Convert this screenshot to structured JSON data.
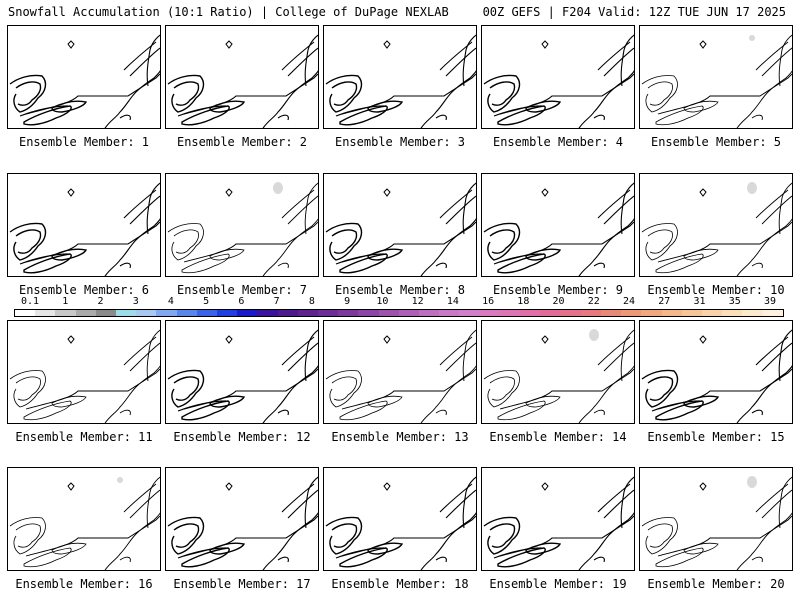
{
  "header": {
    "left": "Snowfall Accumulation (10:1 Ratio) | College of DuPage NEXLAB",
    "right": "00Z GEFS | F204 Valid: 12Z TUE JUN 17 2025"
  },
  "colors": {
    "map_lines": "#000000",
    "snow_fill": "#d9d9d9"
  },
  "panels": [
    {
      "label": "Ensemble Member: 1",
      "coastline": "dark",
      "snow_spots": []
    },
    {
      "label": "Ensemble Member: 2",
      "coastline": "dark",
      "snow_spots": []
    },
    {
      "label": "Ensemble Member: 3",
      "coastline": "dark",
      "snow_spots": []
    },
    {
      "label": "Ensemble Member: 4",
      "coastline": "dark",
      "snow_spots": []
    },
    {
      "label": "Ensemble Member: 5",
      "coastline": "light",
      "snow_spots": [
        "northern Maine"
      ]
    },
    {
      "label": "Ensemble Member: 6",
      "coastline": "dark",
      "snow_spots": []
    },
    {
      "label": "Ensemble Member: 7",
      "coastline": "light",
      "snow_spots": [
        "Quebec"
      ]
    },
    {
      "label": "Ensemble Member: 8",
      "coastline": "dark",
      "snow_spots": []
    },
    {
      "label": "Ensemble Member: 9",
      "coastline": "dark",
      "snow_spots": []
    },
    {
      "label": "Ensemble Member: 10",
      "coastline": "light",
      "snow_spots": [
        "Quebec"
      ]
    },
    {
      "label": "Ensemble Member: 11",
      "coastline": "light",
      "snow_spots": []
    },
    {
      "label": "Ensemble Member: 12",
      "coastline": "dark",
      "snow_spots": []
    },
    {
      "label": "Ensemble Member: 13",
      "coastline": "light",
      "snow_spots": []
    },
    {
      "label": "Ensemble Member: 14",
      "coastline": "light",
      "snow_spots": [
        "Quebec"
      ]
    },
    {
      "label": "Ensemble Member: 15",
      "coastline": "dark",
      "snow_spots": []
    },
    {
      "label": "Ensemble Member: 16",
      "coastline": "light",
      "snow_spots": [
        "northern Maine"
      ]
    },
    {
      "label": "Ensemble Member: 17",
      "coastline": "dark",
      "snow_spots": []
    },
    {
      "label": "Ensemble Member: 18",
      "coastline": "dark",
      "snow_spots": []
    },
    {
      "label": "Ensemble Member: 19",
      "coastline": "dark",
      "snow_spots": []
    },
    {
      "label": "Ensemble Member: 20",
      "coastline": "light",
      "snow_spots": [
        "Quebec"
      ]
    }
  ],
  "colorbar": {
    "labels": [
      "0.1",
      "1",
      "2",
      "3",
      "4",
      "5",
      "6",
      "7",
      "8",
      "9",
      "10",
      "12",
      "14",
      "16",
      "18",
      "20",
      "22",
      "24",
      "27",
      "31",
      "35",
      "39"
    ],
    "colors": [
      "#ffffff",
      "#e6e6e6",
      "#c8c8c8",
      "#aaaaaa",
      "#8a8a8a",
      "#9bdde6",
      "#a8c8ef",
      "#7fa8ee",
      "#5a86ec",
      "#3b63e6",
      "#1f3fe0",
      "#1a1ac8",
      "#3a139c",
      "#4e1a8e",
      "#5f238f",
      "#6e2d96",
      "#7d389e",
      "#8c45a6",
      "#9d52ae",
      "#ad60b6",
      "#bd6ebf",
      "#c878c4",
      "#d27ec8",
      "#d97ac0",
      "#de74b5",
      "#e06ea7",
      "#e26a99",
      "#e4708c",
      "#e67a80",
      "#ea8878",
      "#ee9878",
      "#f2a87f",
      "#f5b68a",
      "#f7c498",
      "#f9d2a8",
      "#fbdfbb",
      "#fde9cd",
      "#fff1de"
    ]
  }
}
